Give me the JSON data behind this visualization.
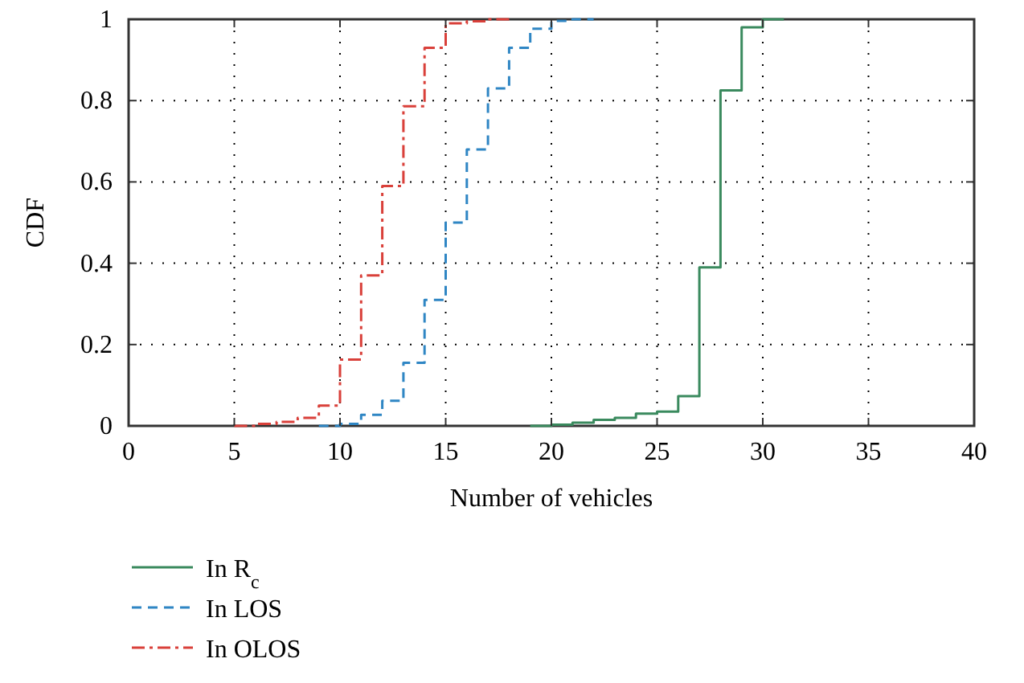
{
  "chart_data": {
    "type": "step",
    "xlabel": "Number of vehicles",
    "ylabel": "CDF",
    "xlim": [
      0,
      40
    ],
    "ylim": [
      0,
      1
    ],
    "xticks": [
      0,
      5,
      10,
      15,
      20,
      25,
      30,
      35,
      40
    ],
    "yticks": [
      0,
      0.2,
      0.4,
      0.6,
      0.8,
      1
    ],
    "grid": true,
    "legend": "bottom",
    "series": [
      {
        "name": "In R$_{c}$",
        "color": "#3a8a5e",
        "line_style": "solid",
        "x": [
          19,
          20,
          21,
          22,
          23,
          24,
          25,
          26,
          27,
          28,
          29,
          30,
          31
        ],
        "values": [
          0,
          0.003,
          0.008,
          0.015,
          0.02,
          0.03,
          0.035,
          0.073,
          0.39,
          0.825,
          0.98,
          1,
          1
        ]
      },
      {
        "name": "In LOS",
        "color": "#2f86c4",
        "line_style": "dashed",
        "x": [
          9,
          10,
          11,
          12,
          13,
          14,
          15,
          16,
          17,
          18,
          19,
          20,
          21,
          22
        ],
        "values": [
          0,
          0.005,
          0.027,
          0.062,
          0.155,
          0.31,
          0.5,
          0.68,
          0.83,
          0.93,
          0.977,
          0.996,
          1,
          1
        ]
      },
      {
        "name": "In OLOS",
        "color": "#d9403a",
        "line_style": "dotted",
        "x": [
          5,
          6,
          7,
          8,
          9,
          10,
          11,
          12,
          13,
          14,
          15,
          16,
          17,
          18
        ],
        "values": [
          0,
          0.005,
          0.01,
          0.02,
          0.05,
          0.163,
          0.37,
          0.59,
          0.786,
          0.93,
          0.99,
          0.995,
          1,
          1
        ]
      }
    ]
  }
}
